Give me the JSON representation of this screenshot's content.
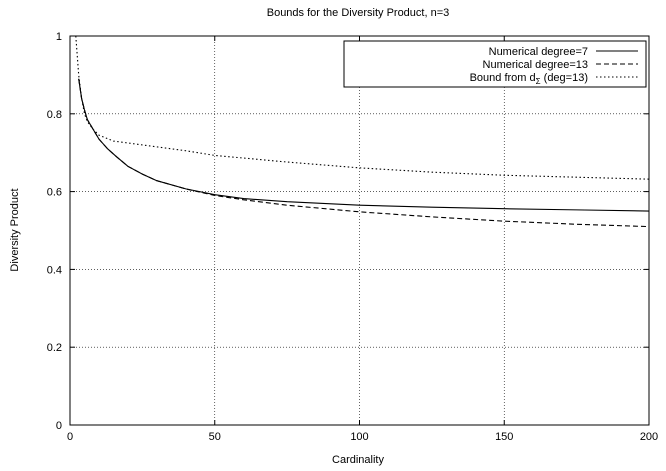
{
  "chart_data": {
    "type": "line",
    "title": "Bounds for the Diversity Product, n=3",
    "xlabel": "Cardinality",
    "ylabel": "Diversity Product",
    "xlim": [
      0,
      200
    ],
    "ylim": [
      0,
      1
    ],
    "x_ticks": [
      0,
      50,
      100,
      150,
      200
    ],
    "y_ticks": [
      0,
      0.2,
      0.4,
      0.6,
      0.8,
      1
    ],
    "x_tick_labels": [
      "0",
      "50",
      "100",
      "150",
      "200"
    ],
    "y_tick_labels": [
      "0",
      "0.2",
      "0.4",
      "0.6",
      "0.8",
      "1"
    ],
    "grid": true,
    "legend_position": "top-right",
    "series": [
      {
        "name": "Numerical degree=7",
        "style": "solid",
        "x": [
          3,
          4,
          5,
          6,
          8,
          10,
          13,
          16,
          20,
          25,
          30,
          40,
          50,
          60,
          75,
          100,
          125,
          150,
          175,
          200
        ],
        "y": [
          0.89,
          0.84,
          0.81,
          0.785,
          0.76,
          0.735,
          0.71,
          0.69,
          0.665,
          0.645,
          0.628,
          0.607,
          0.592,
          0.582,
          0.574,
          0.565,
          0.56,
          0.556,
          0.553,
          0.55
        ]
      },
      {
        "name": "Numerical degree=13",
        "style": "dashed",
        "x": [
          3,
          4,
          5,
          6,
          8,
          10,
          13,
          16,
          20,
          25,
          30,
          40,
          50,
          60,
          75,
          100,
          125,
          150,
          175,
          200
        ],
        "y": [
          0.89,
          0.84,
          0.81,
          0.785,
          0.76,
          0.735,
          0.71,
          0.69,
          0.665,
          0.645,
          0.628,
          0.607,
          0.59,
          0.579,
          0.565,
          0.548,
          0.535,
          0.524,
          0.516,
          0.51
        ]
      },
      {
        "name": "Bound from d",
        "name_subscript": "Σ",
        "name_suffix": " (deg=13)",
        "style": "dotted",
        "x": [
          2,
          3,
          4,
          5,
          6,
          8,
          10,
          15,
          20,
          30,
          40,
          50,
          75,
          100,
          125,
          150,
          175,
          200
        ],
        "y": [
          1.0,
          0.9,
          0.84,
          0.8,
          0.78,
          0.76,
          0.745,
          0.73,
          0.725,
          0.715,
          0.705,
          0.693,
          0.676,
          0.661,
          0.65,
          0.642,
          0.637,
          0.632
        ]
      }
    ]
  }
}
